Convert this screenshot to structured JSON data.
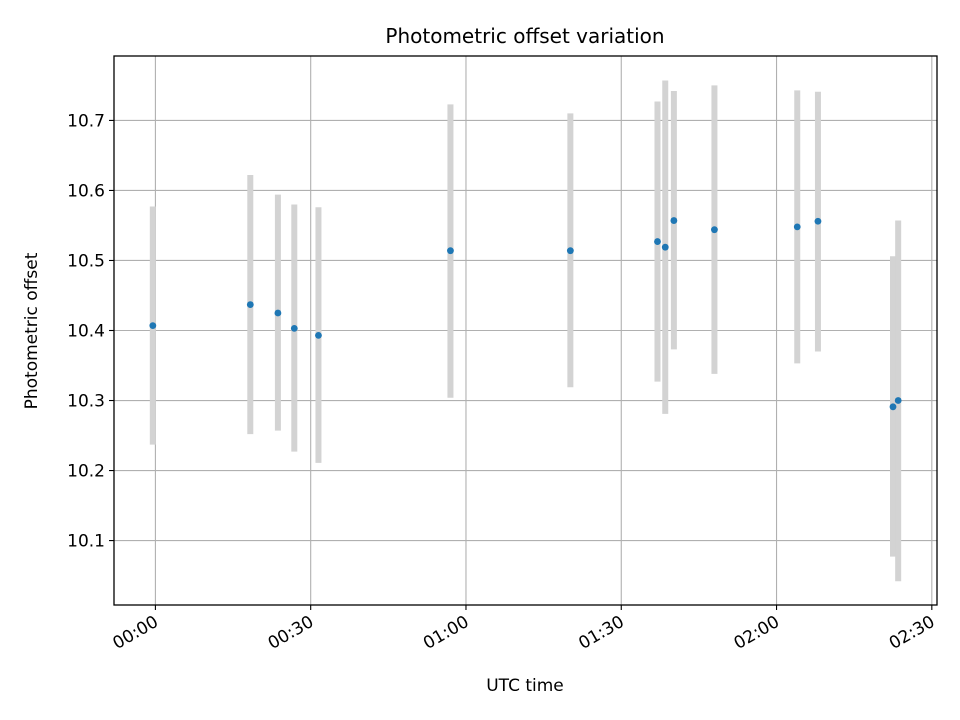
{
  "chart_data": {
    "type": "scatter",
    "title": "Photometric offset variation",
    "xlabel": "UTC time",
    "ylabel": "Photometric offset",
    "x_ticks": [
      "00:00",
      "00:30",
      "01:00",
      "01:30",
      "02:00",
      "02:30"
    ],
    "y_ticks": [
      "10.1",
      "10.2",
      "10.3",
      "10.4",
      "10.5",
      "10.6",
      "10.7"
    ],
    "xlim": [
      "23:52",
      "02:31"
    ],
    "ylim": [
      10.008,
      10.792
    ],
    "grid": true,
    "marker_color": "#1f77b4",
    "errorbar_color": "#d3d3d3",
    "series": [
      {
        "points": [
          {
            "x": "23:59:30",
            "y": 10.407,
            "yerr_low": 10.237,
            "yerr_high": 10.577
          },
          {
            "x": "00:18:20",
            "y": 10.437,
            "yerr_low": 10.252,
            "yerr_high": 10.622
          },
          {
            "x": "00:23:40",
            "y": 10.425,
            "yerr_low": 10.257,
            "yerr_high": 10.594
          },
          {
            "x": "00:26:50",
            "y": 10.403,
            "yerr_low": 10.227,
            "yerr_high": 10.58
          },
          {
            "x": "00:31:30",
            "y": 10.393,
            "yerr_low": 10.211,
            "yerr_high": 10.576
          },
          {
            "x": "00:57:00",
            "y": 10.514,
            "yerr_low": 10.304,
            "yerr_high": 10.723
          },
          {
            "x": "01:20:10",
            "y": 10.514,
            "yerr_low": 10.319,
            "yerr_high": 10.71
          },
          {
            "x": "01:37:00",
            "y": 10.527,
            "yerr_low": 10.327,
            "yerr_high": 10.727
          },
          {
            "x": "01:38:30",
            "y": 10.519,
            "yerr_low": 10.281,
            "yerr_high": 10.757
          },
          {
            "x": "01:40:10",
            "y": 10.557,
            "yerr_low": 10.373,
            "yerr_high": 10.742
          },
          {
            "x": "01:48:00",
            "y": 10.544,
            "yerr_low": 10.338,
            "yerr_high": 10.75
          },
          {
            "x": "02:04:00",
            "y": 10.548,
            "yerr_low": 10.353,
            "yerr_high": 10.743
          },
          {
            "x": "02:08:00",
            "y": 10.556,
            "yerr_low": 10.37,
            "yerr_high": 10.741
          },
          {
            "x": "02:22:30",
            "y": 10.291,
            "yerr_low": 10.077,
            "yerr_high": 10.506
          },
          {
            "x": "02:23:30",
            "y": 10.3,
            "yerr_low": 10.042,
            "yerr_high": 10.557
          }
        ]
      }
    ]
  }
}
